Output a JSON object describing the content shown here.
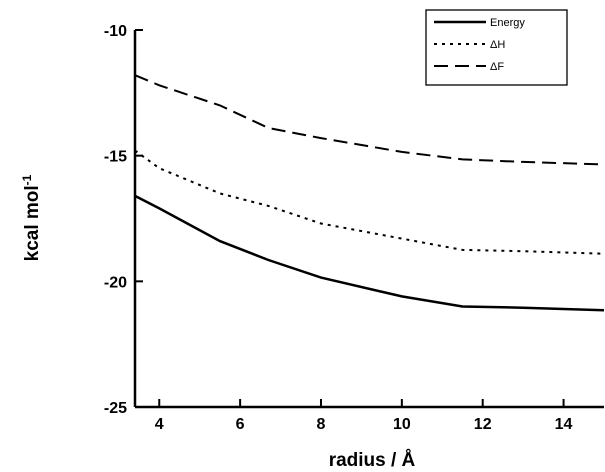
{
  "chart_data": {
    "type": "line",
    "xlabel": "radius / Å",
    "ylabel": "kcal mol",
    "ylabel_superscript": "-1",
    "xlim": [
      3.4,
      15
    ],
    "ylim": [
      -25,
      -10
    ],
    "xticks": [
      4,
      6,
      8,
      10,
      12,
      14
    ],
    "yticks": [
      -10,
      -15,
      -20,
      -25
    ],
    "grid": false,
    "legend_position": "top-right",
    "series": [
      {
        "name": "Energy",
        "dash": "solid",
        "color": "#000000",
        "x": [
          3.4,
          4.0,
          5.5,
          6.7,
          8.0,
          10.0,
          11.5,
          13.0,
          15.0
        ],
        "y": [
          -16.6,
          -17.1,
          -18.4,
          -19.15,
          -19.85,
          -20.6,
          -21.0,
          -21.05,
          -21.15
        ]
      },
      {
        "name": "ΔH",
        "dash": "dotted",
        "color": "#000000",
        "x": [
          3.4,
          4.0,
          5.5,
          6.7,
          8.0,
          10.0,
          11.5,
          13.0,
          15.0
        ],
        "y": [
          -14.8,
          -15.5,
          -16.5,
          -17.0,
          -17.7,
          -18.3,
          -18.75,
          -18.8,
          -18.9
        ]
      },
      {
        "name": "ΔF",
        "dash": "dashed",
        "color": "#000000",
        "x": [
          3.4,
          4.0,
          5.5,
          6.7,
          8.0,
          10.0,
          11.5,
          13.0,
          15.0
        ],
        "y": [
          -11.8,
          -12.2,
          -13.0,
          -13.9,
          -14.3,
          -14.85,
          -15.15,
          -15.25,
          -15.35
        ]
      }
    ]
  }
}
